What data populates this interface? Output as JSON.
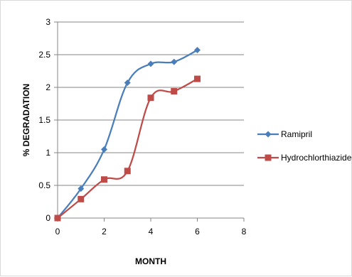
{
  "chart_data": {
    "type": "line",
    "title": "",
    "xlabel": "MONTH",
    "ylabel": "% DEGRADATION",
    "xlim": [
      0,
      8
    ],
    "ylim": [
      0,
      3
    ],
    "xticks": [
      "0",
      "2",
      "4",
      "6",
      "8"
    ],
    "yticks": [
      "0",
      "0.5",
      "1",
      "1.5",
      "2",
      "2.5",
      "3"
    ],
    "grid": "horizontal",
    "legend_position": "right",
    "smooth": true,
    "series": [
      {
        "name": "Ramipril",
        "color": "#4a7ebb",
        "marker": "diamond",
        "x": [
          0,
          1,
          2,
          3,
          4,
          5,
          6
        ],
        "y": [
          0,
          0.45,
          1.05,
          2.07,
          2.36,
          2.39,
          2.57
        ]
      },
      {
        "name": "Hydrochlorthiazide",
        "color": "#be4b48",
        "marker": "square",
        "x": [
          0,
          1,
          2,
          3,
          4,
          5,
          6
        ],
        "y": [
          0,
          0.29,
          0.59,
          0.72,
          1.84,
          1.94,
          2.13
        ]
      }
    ]
  }
}
